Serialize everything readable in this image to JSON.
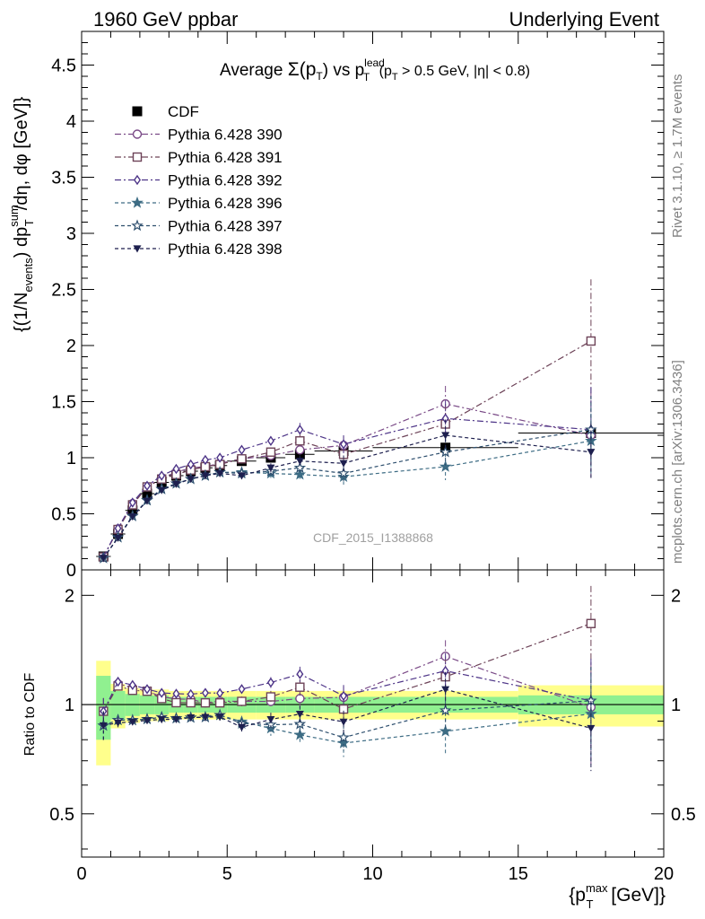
{
  "header": {
    "left": "1960 GeV ppbar",
    "right": "Underlying Event"
  },
  "side_labels": {
    "rivet": "Rivet 3.1.10, ≥ 1.7M events",
    "mcplots": "mcplots.cern.ch [arXiv:1306.3436]"
  },
  "watermark": "CDF_2015_I1388868",
  "chart_data": {
    "type": "scatter",
    "title_parts": {
      "pre": "Average ",
      "sigma": "Σ(p",
      "sub_t": "T",
      "post1": ") vs p",
      "sup_lead": "lead",
      "post2": " (p",
      "sub_t2": "T",
      "post3": " > 0.5 GeV, |η| < 0.8)"
    },
    "ylabel_parts": {
      "p1": "{(1/N",
      "sub_events": "events",
      "p2": ") dp",
      "sup_sum": "sum",
      "sub_T": "T",
      "p3": "/dη, dφ [GeV]}"
    },
    "xlabel_parts": {
      "p1": "{p",
      "sup_max": "max",
      "sub_T": "T",
      "p2": " [GeV]}"
    },
    "ratio_ylabel": "Ratio to CDF",
    "xlim": [
      0,
      20
    ],
    "ylim_main": [
      0,
      4.8
    ],
    "ylim_ratio": [
      0.38,
      2.35
    ],
    "ratio_scale": "log",
    "x_ticks": [
      "0",
      "5",
      "10",
      "15",
      "20"
    ],
    "y_ticks_main": [
      "0",
      "0.5",
      "1",
      "1.5",
      "2",
      "2.5",
      "3",
      "3.5",
      "4",
      "4.5"
    ],
    "y_ticks_ratio": [
      "0.5",
      "1",
      "2"
    ],
    "legend_position": "upper-left",
    "x": [
      0.75,
      1.25,
      1.75,
      2.25,
      2.75,
      3.25,
      3.75,
      4.25,
      4.75,
      5.5,
      6.5,
      7.5,
      9.0,
      12.5,
      17.5
    ],
    "x_halfwidth": [
      0.25,
      0.25,
      0.25,
      0.25,
      0.25,
      0.25,
      0.25,
      0.25,
      0.25,
      0.5,
      0.5,
      0.5,
      1.0,
      2.5,
      2.5
    ],
    "data": {
      "name": "CDF",
      "marker": "square-filled",
      "color": "#000000",
      "values": [
        0.12,
        0.32,
        0.53,
        0.68,
        0.78,
        0.84,
        0.88,
        0.91,
        0.93,
        0.97,
        1.0,
        1.03,
        1.06,
        1.09,
        1.22
      ],
      "band_stat": [
        0.2,
        0.09,
        0.07,
        0.06,
        0.06,
        0.05,
        0.05,
        0.05,
        0.05,
        0.05,
        0.05,
        0.05,
        0.05,
        0.05,
        0.06
      ],
      "band_total": [
        0.32,
        0.14,
        0.11,
        0.1,
        0.1,
        0.09,
        0.09,
        0.09,
        0.09,
        0.09,
        0.09,
        0.09,
        0.09,
        0.09,
        0.13
      ]
    },
    "series": [
      {
        "name": "Pythia 6.428 390",
        "marker": "circle-open",
        "color": "#7a4a87",
        "dash": "7,3,2,3",
        "values": [
          0.115,
          0.365,
          0.59,
          0.74,
          0.82,
          0.87,
          0.91,
          0.92,
          0.95,
          0.99,
          1.02,
          1.07,
          1.11,
          1.48,
          1.2
        ],
        "errors": [
          0.01,
          0.01,
          0.01,
          0.01,
          0.01,
          0.01,
          0.01,
          0.02,
          0.02,
          0.03,
          0.04,
          0.06,
          0.08,
          0.16,
          0.38
        ]
      },
      {
        "name": "Pythia 6.428 391",
        "marker": "square-open",
        "color": "#6d4358",
        "dash": "7,3,2,3",
        "values": [
          0.115,
          0.36,
          0.58,
          0.74,
          0.81,
          0.85,
          0.89,
          0.92,
          0.94,
          0.99,
          1.05,
          1.15,
          1.03,
          1.3,
          2.04
        ],
        "errors": [
          0.01,
          0.01,
          0.01,
          0.01,
          0.01,
          0.01,
          0.01,
          0.02,
          0.02,
          0.03,
          0.04,
          0.06,
          0.08,
          0.18,
          0.55
        ]
      },
      {
        "name": "Pythia 6.428 392",
        "marker": "diamond-open",
        "color": "#4e3588",
        "dash": "7,3,2,3",
        "values": [
          0.115,
          0.37,
          0.6,
          0.75,
          0.84,
          0.9,
          0.94,
          0.98,
          1.0,
          1.07,
          1.15,
          1.25,
          1.12,
          1.35,
          1.25
        ],
        "errors": [
          0.01,
          0.01,
          0.01,
          0.01,
          0.01,
          0.01,
          0.01,
          0.02,
          0.02,
          0.03,
          0.04,
          0.06,
          0.08,
          0.16,
          0.38
        ]
      },
      {
        "name": "Pythia 6.428 396",
        "marker": "star-filled",
        "color": "#3d6c84",
        "dash": "4,3",
        "values": [
          0.105,
          0.29,
          0.48,
          0.62,
          0.72,
          0.77,
          0.81,
          0.84,
          0.87,
          0.87,
          0.86,
          0.85,
          0.83,
          0.92,
          1.15
        ],
        "errors": [
          0.01,
          0.01,
          0.01,
          0.01,
          0.01,
          0.01,
          0.01,
          0.02,
          0.02,
          0.03,
          0.04,
          0.05,
          0.07,
          0.12,
          0.3
        ]
      },
      {
        "name": "Pythia 6.428 397",
        "marker": "star-open",
        "color": "#2e4f6e",
        "dash": "4,3",
        "values": [
          0.105,
          0.29,
          0.48,
          0.62,
          0.72,
          0.77,
          0.81,
          0.84,
          0.87,
          0.86,
          0.88,
          0.91,
          0.86,
          1.05,
          1.25
        ],
        "errors": [
          0.01,
          0.01,
          0.01,
          0.01,
          0.01,
          0.01,
          0.01,
          0.02,
          0.02,
          0.03,
          0.04,
          0.05,
          0.07,
          0.12,
          0.3
        ]
      },
      {
        "name": "Pythia 6.428 398",
        "marker": "triangle-down-filled",
        "color": "#1d1f4e",
        "dash": "4,3",
        "values": [
          0.105,
          0.285,
          0.475,
          0.615,
          0.71,
          0.765,
          0.81,
          0.84,
          0.86,
          0.84,
          0.91,
          0.97,
          0.95,
          1.2,
          1.05
        ],
        "errors": [
          0.01,
          0.01,
          0.01,
          0.01,
          0.01,
          0.01,
          0.01,
          0.02,
          0.02,
          0.03,
          0.04,
          0.05,
          0.07,
          0.14,
          0.25
        ]
      }
    ]
  }
}
